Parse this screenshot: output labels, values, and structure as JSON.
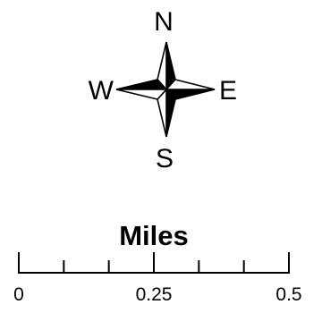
{
  "compass": {
    "north": "N",
    "east": "E",
    "south": "S",
    "west": "W"
  },
  "scale_bar": {
    "title": "Miles",
    "labels": [
      "0",
      "0.25",
      "0.5"
    ],
    "max_value": 0.5,
    "minor_divisions": 6
  },
  "colors": {
    "ink": "#000000",
    "paper": "#ffffff"
  }
}
